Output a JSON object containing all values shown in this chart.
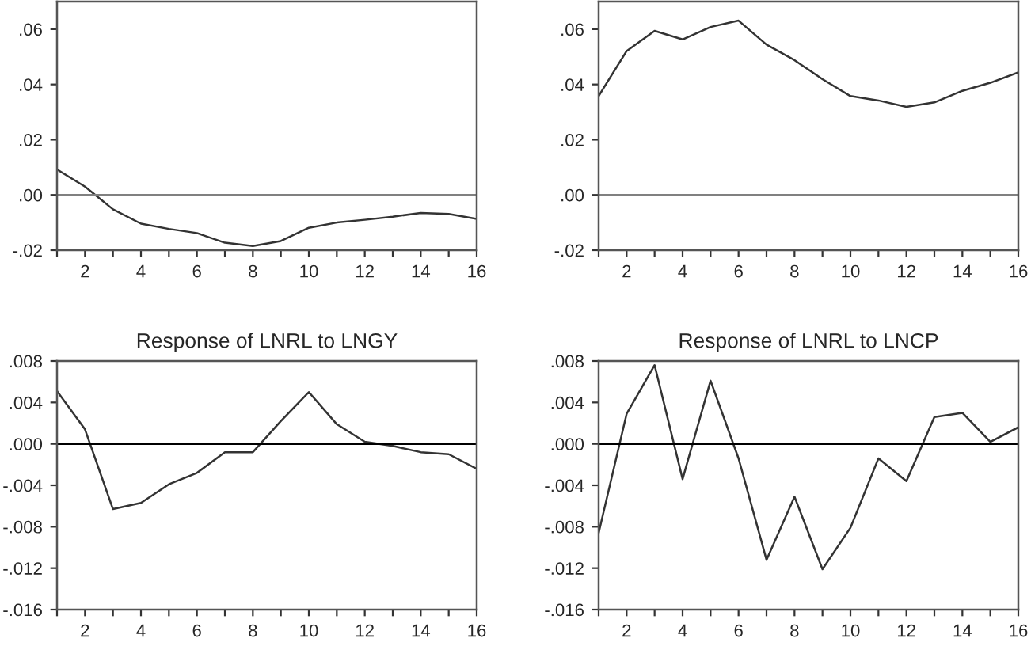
{
  "chart_data": [
    {
      "type": "line",
      "x": [
        1,
        2,
        3,
        4,
        5,
        6,
        7,
        8,
        9,
        10,
        11,
        12,
        13,
        14,
        15,
        16
      ],
      "series": [
        {
          "color": "#333333",
          "values": [
            0.0092,
            0.003,
            -0.0052,
            -0.0104,
            -0.0123,
            -0.0138,
            -0.0173,
            -0.0185,
            -0.0167,
            -0.0119,
            -0.01,
            -0.009,
            -0.0079,
            -0.0065,
            -0.0069,
            -0.0087
          ]
        }
      ],
      "xlim": [
        1,
        16
      ],
      "xticks": [
        {
          "value": 1,
          "label": null
        },
        2,
        {
          "value": 3,
          "label": null
        },
        4,
        {
          "value": 5,
          "label": null
        },
        6,
        {
          "value": 7,
          "label": null
        },
        8,
        {
          "value": 9,
          "label": null
        },
        10,
        {
          "value": 11,
          "label": null
        },
        12,
        {
          "value": 13,
          "label": null
        },
        14,
        {
          "value": 15,
          "label": null
        },
        16
      ],
      "ylim": [
        -0.02,
        0.07
      ],
      "yticks": [
        {
          "value": -0.02,
          "label": "-.02"
        },
        {
          "value": 0,
          "label": ".00"
        },
        {
          "value": 0.02,
          "label": ".02"
        },
        {
          "value": 0.04,
          "label": ".04"
        },
        {
          "value": 0.06,
          "label": ".06"
        }
      ],
      "ref_lines": [
        {
          "axis": "y",
          "value": 0,
          "color": "#808080"
        }
      ],
      "grid": false,
      "legend": false
    },
    {
      "type": "line",
      "x": [
        1,
        2,
        3,
        4,
        5,
        6,
        7,
        8,
        9,
        10,
        11,
        12,
        13,
        14,
        15,
        16
      ],
      "series": [
        {
          "color": "#333333",
          "values": [
            0.0358,
            0.0521,
            0.0594,
            0.0563,
            0.0608,
            0.0631,
            0.0544,
            0.0488,
            0.0419,
            0.0358,
            0.0342,
            0.0319,
            0.0335,
            0.0377,
            0.0406,
            0.0444
          ]
        }
      ],
      "xlim": [
        1,
        16
      ],
      "xticks": [
        {
          "value": 1,
          "label": null
        },
        2,
        {
          "value": 3,
          "label": null
        },
        4,
        {
          "value": 5,
          "label": null
        },
        6,
        {
          "value": 7,
          "label": null
        },
        8,
        {
          "value": 9,
          "label": null
        },
        10,
        {
          "value": 11,
          "label": null
        },
        12,
        {
          "value": 13,
          "label": null
        },
        14,
        {
          "value": 15,
          "label": null
        },
        16
      ],
      "ylim": [
        -0.02,
        0.07
      ],
      "yticks": [
        {
          "value": -0.02,
          "label": "-.02"
        },
        {
          "value": 0,
          "label": ".00"
        },
        {
          "value": 0.02,
          "label": ".02"
        },
        {
          "value": 0.04,
          "label": ".04"
        },
        {
          "value": 0.06,
          "label": ".06"
        }
      ],
      "ref_lines": [
        {
          "axis": "y",
          "value": 0,
          "color": "#808080"
        }
      ],
      "grid": false,
      "legend": false
    },
    {
      "type": "line",
      "title": "Response of LNRL to LNGY",
      "x": [
        1,
        2,
        3,
        4,
        5,
        6,
        7,
        8,
        9,
        10,
        11,
        12,
        13,
        14,
        15,
        16
      ],
      "series": [
        {
          "color": "#333333",
          "values": [
            0.0051,
            0.0014,
            -0.0063,
            -0.0057,
            -0.0039,
            -0.0028,
            -0.0008,
            -0.0008,
            0.0022,
            0.005,
            0.0019,
            0.0002,
            -0.0002,
            -0.0008,
            -0.001,
            -0.0024
          ]
        }
      ],
      "xlim": [
        1,
        16
      ],
      "xticks": [
        {
          "value": 1,
          "label": null
        },
        2,
        {
          "value": 3,
          "label": null
        },
        4,
        {
          "value": 5,
          "label": null
        },
        6,
        {
          "value": 7,
          "label": null
        },
        8,
        {
          "value": 9,
          "label": null
        },
        10,
        {
          "value": 11,
          "label": null
        },
        12,
        {
          "value": 13,
          "label": null
        },
        14,
        {
          "value": 15,
          "label": null
        },
        16
      ],
      "ylim": [
        -0.016,
        0.008
      ],
      "yticks": [
        {
          "value": -0.016,
          "label": "-.016"
        },
        {
          "value": -0.012,
          "label": "-.012"
        },
        {
          "value": -0.008,
          "label": "-.008"
        },
        {
          "value": -0.004,
          "label": "-.004"
        },
        {
          "value": 0,
          "label": ".000"
        },
        {
          "value": 0.004,
          "label": ".004"
        },
        {
          "value": 0.008,
          "label": ".008"
        }
      ],
      "ref_lines": [
        {
          "axis": "y",
          "value": 0,
          "color": "#000000"
        }
      ],
      "grid": false,
      "legend": false
    },
    {
      "type": "line",
      "title": "Response of LNRL to LNCP",
      "x": [
        1,
        2,
        3,
        4,
        5,
        6,
        7,
        8,
        9,
        10,
        11,
        12,
        13,
        14,
        15,
        16
      ],
      "series": [
        {
          "color": "#333333",
          "values": [
            -0.0086,
            0.0029,
            0.0076,
            -0.0034,
            0.0061,
            -0.0014,
            -0.0112,
            -0.0051,
            -0.0121,
            -0.0081,
            -0.0014,
            -0.0036,
            0.0026,
            0.003,
            0.0002,
            0.0016
          ]
        }
      ],
      "xlim": [
        1,
        16
      ],
      "xticks": [
        {
          "value": 1,
          "label": null
        },
        2,
        {
          "value": 3,
          "label": null
        },
        4,
        {
          "value": 5,
          "label": null
        },
        6,
        {
          "value": 7,
          "label": null
        },
        8,
        {
          "value": 9,
          "label": null
        },
        10,
        {
          "value": 11,
          "label": null
        },
        12,
        {
          "value": 13,
          "label": null
        },
        14,
        {
          "value": 15,
          "label": null
        },
        16
      ],
      "ylim": [
        -0.016,
        0.008
      ],
      "yticks": [
        {
          "value": -0.016,
          "label": "-.016"
        },
        {
          "value": -0.012,
          "label": "-.012"
        },
        {
          "value": -0.008,
          "label": "-.008"
        },
        {
          "value": -0.004,
          "label": "-.004"
        },
        {
          "value": 0,
          "label": ".000"
        },
        {
          "value": 0.004,
          "label": ".004"
        },
        {
          "value": 0.008,
          "label": ".008"
        }
      ],
      "ref_lines": [
        {
          "axis": "y",
          "value": 0,
          "color": "#000000"
        }
      ],
      "grid": false,
      "legend": false
    }
  ]
}
